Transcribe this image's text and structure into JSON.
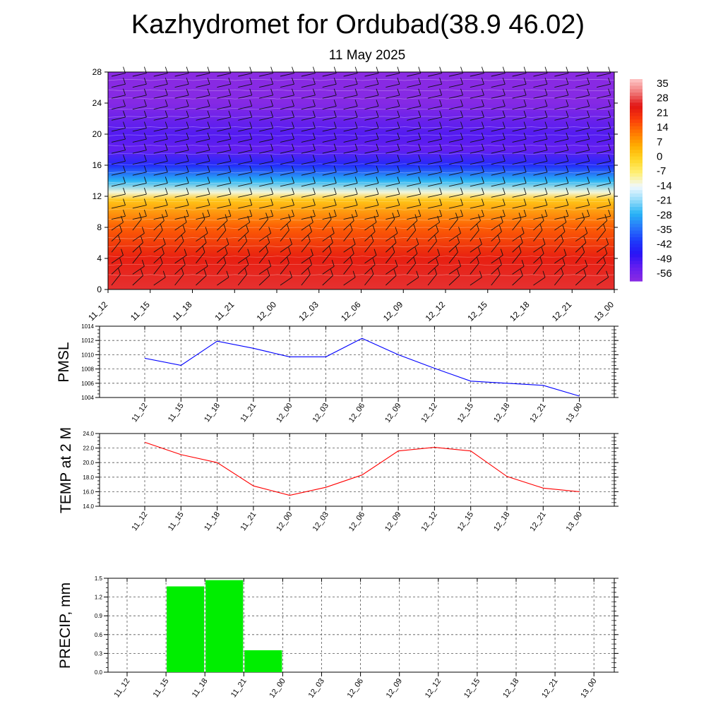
{
  "title": "Kazhydromet for Ordubad(38.9 46.02)",
  "subtitle": "11 May 2025",
  "chart_data": [
    {
      "type": "heatmap",
      "name": "temperature-wind-profile",
      "x_ticks": [
        "11_12",
        "11_15",
        "11_18",
        "11_21",
        "12_00",
        "12_03",
        "12_06",
        "12_09",
        "12_12",
        "12_15",
        "12_18",
        "12_21",
        "13_00"
      ],
      "y_ticks": [
        0,
        4,
        8,
        12,
        16,
        20,
        24,
        28
      ],
      "ylim": [
        0,
        28
      ],
      "colorbar_labels": [
        35,
        28,
        21,
        14,
        7,
        0,
        -7,
        -14,
        -21,
        -28,
        -35,
        -42,
        -49,
        -56
      ],
      "colorbar_range": [
        -63,
        42
      ],
      "profile": [
        {
          "y": 0,
          "v": 30
        },
        {
          "y": 4,
          "v": 26
        },
        {
          "y": 8,
          "v": 17
        },
        {
          "y": 11.5,
          "v": 3
        },
        {
          "y": 12.5,
          "v": -12
        },
        {
          "y": 14,
          "v": -28
        },
        {
          "y": 16,
          "v": -45
        },
        {
          "y": 18,
          "v": -56
        },
        {
          "y": 20,
          "v": -54
        },
        {
          "y": 24,
          "v": -62
        },
        {
          "y": 28,
          "v": -63
        }
      ]
    },
    {
      "type": "line",
      "name": "pmsl",
      "ylabel": "PMSL",
      "x": [
        "11_12",
        "11_15",
        "11_18",
        "11_21",
        "12_00",
        "12_03",
        "12_06",
        "12_09",
        "12_12",
        "12_15",
        "12_18",
        "12_21",
        "13_00"
      ],
      "values": [
        1009.5,
        1008.5,
        1011.9,
        1010.9,
        1009.7,
        1009.7,
        1012.3,
        1010.0,
        1008.1,
        1006.3,
        1006.0,
        1005.7,
        1004.2
      ],
      "ylim": [
        1004,
        1014
      ],
      "y_ticks": [
        1004,
        1006,
        1008,
        1010,
        1012,
        1014
      ],
      "color": "#0000ff"
    },
    {
      "type": "line",
      "name": "temp2m",
      "ylabel": "TEMP at 2 M",
      "x": [
        "11_12",
        "11_15",
        "11_18",
        "11_21",
        "12_00",
        "12_03",
        "12_06",
        "12_09",
        "12_12",
        "12_15",
        "12_18",
        "12_21",
        "13_00"
      ],
      "values": [
        22.8,
        21.1,
        20.0,
        16.8,
        15.5,
        16.6,
        18.3,
        21.6,
        22.1,
        21.6,
        18.1,
        16.5,
        16.0
      ],
      "ylim": [
        14,
        24
      ],
      "y_ticks": [
        "14.0",
        "16.0",
        "18.0",
        "20.0",
        "22.0",
        "24.0"
      ],
      "color": "#ff0000"
    },
    {
      "type": "bar",
      "name": "precip",
      "ylabel": "PRECIP, mm",
      "categories": [
        "11_12",
        "11_15",
        "11_18",
        "11_21",
        "12_00",
        "12_03",
        "12_06",
        "12_09",
        "12_12",
        "12_15",
        "12_18",
        "12_21",
        "13_00"
      ],
      "values": [
        0,
        1.37,
        1.47,
        0.35,
        0,
        0,
        0,
        0,
        0,
        0,
        0,
        0,
        0
      ],
      "ylim": [
        0,
        1.5
      ],
      "y_ticks": [
        "0.0",
        "0.3",
        "0.6",
        "0.9",
        "1.2",
        "1.5"
      ],
      "color": "#00ee00"
    }
  ]
}
